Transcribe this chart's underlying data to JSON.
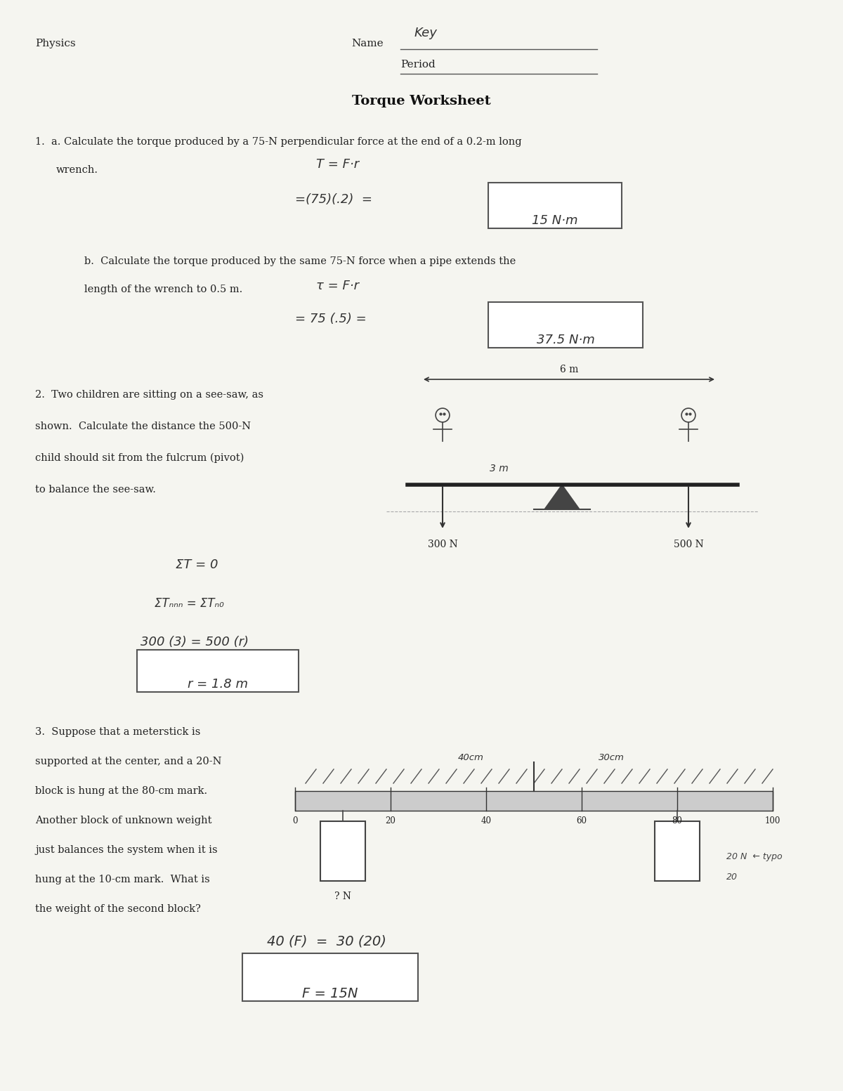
{
  "bg_color": "#f5f5f0",
  "title": "Torque Worksheet",
  "header_physics": "Physics",
  "header_name": "Name",
  "header_name_written": "Key",
  "header_period": "Period",
  "q1a_text": "1.  a. Calculate the torque produced by a 75-N perpendicular force at the end of a 0.2-m long",
  "q1a_text2": "wrench.",
  "q1a_work1": "T = F·r",
  "q1a_work2": "=(75)(.2)  =",
  "q1a_answer": "15 N·m",
  "q1b_text": "b.  Calculate the torque produced by the same 75-N force when a pipe extends the",
  "q1b_text2": "length of the wrench to 0.5 m.",
  "q1b_work1": "τ = F·r",
  "q1b_work2": "= 75 (.5) =",
  "q1b_answer": "37.5 N·m",
  "q2_text1": "2.  Two children are sitting on a see-saw, as",
  "q2_text2": "shown.  Calculate the distance the 500-N",
  "q2_text3": "child should sit from the fulcrum (pivot)",
  "q2_text4": "to balance the see-saw.",
  "q2_work1": "ΣT = 0",
  "q2_work2": "ΣTₙₙₙ = ΣTₙ₀",
  "q2_work3": "300 (3) = 500 (r)",
  "q2_answer": "r = 1.8 m",
  "q3_text1": "3.  Suppose that a meterstick is",
  "q3_text2": "supported at the center, and a 20-N",
  "q3_text3": "block is hung at the 80-cm mark.",
  "q3_text4": "Another block of unknown weight",
  "q3_text5": "just balances the system when it is",
  "q3_text6": "hung at the 10-cm mark.  What is",
  "q3_text7": "the weight of the second block?",
  "q3_work1": "40 (F)  =  30 (20)",
  "q3_answer": "F = 15N"
}
